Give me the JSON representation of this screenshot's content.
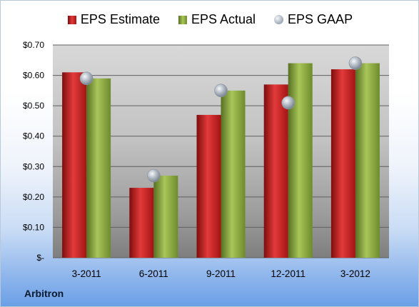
{
  "company": "Arbitron",
  "chart_data": {
    "type": "bar",
    "categories": [
      "3-2011",
      "6-2011",
      "9-2011",
      "12-2011",
      "3-2012"
    ],
    "series": [
      {
        "name": "EPS Estimate",
        "kind": "bar",
        "color": "#c81e1e",
        "values": [
          0.61,
          0.23,
          0.47,
          0.57,
          0.62
        ]
      },
      {
        "name": "EPS Actual",
        "kind": "bar",
        "color": "#86a83c",
        "values": [
          0.59,
          0.27,
          0.55,
          0.64,
          0.64
        ]
      },
      {
        "name": "EPS GAAP",
        "kind": "marker",
        "color": "#a9b2bd",
        "values": [
          0.59,
          0.27,
          0.55,
          0.51,
          0.64
        ]
      }
    ],
    "yticks": [
      "$-",
      "$0.10",
      "$0.20",
      "$0.30",
      "$0.40",
      "$0.50",
      "$0.60",
      "$0.70"
    ],
    "ylim": [
      0,
      0.7
    ],
    "grid": true,
    "legend": "top"
  }
}
